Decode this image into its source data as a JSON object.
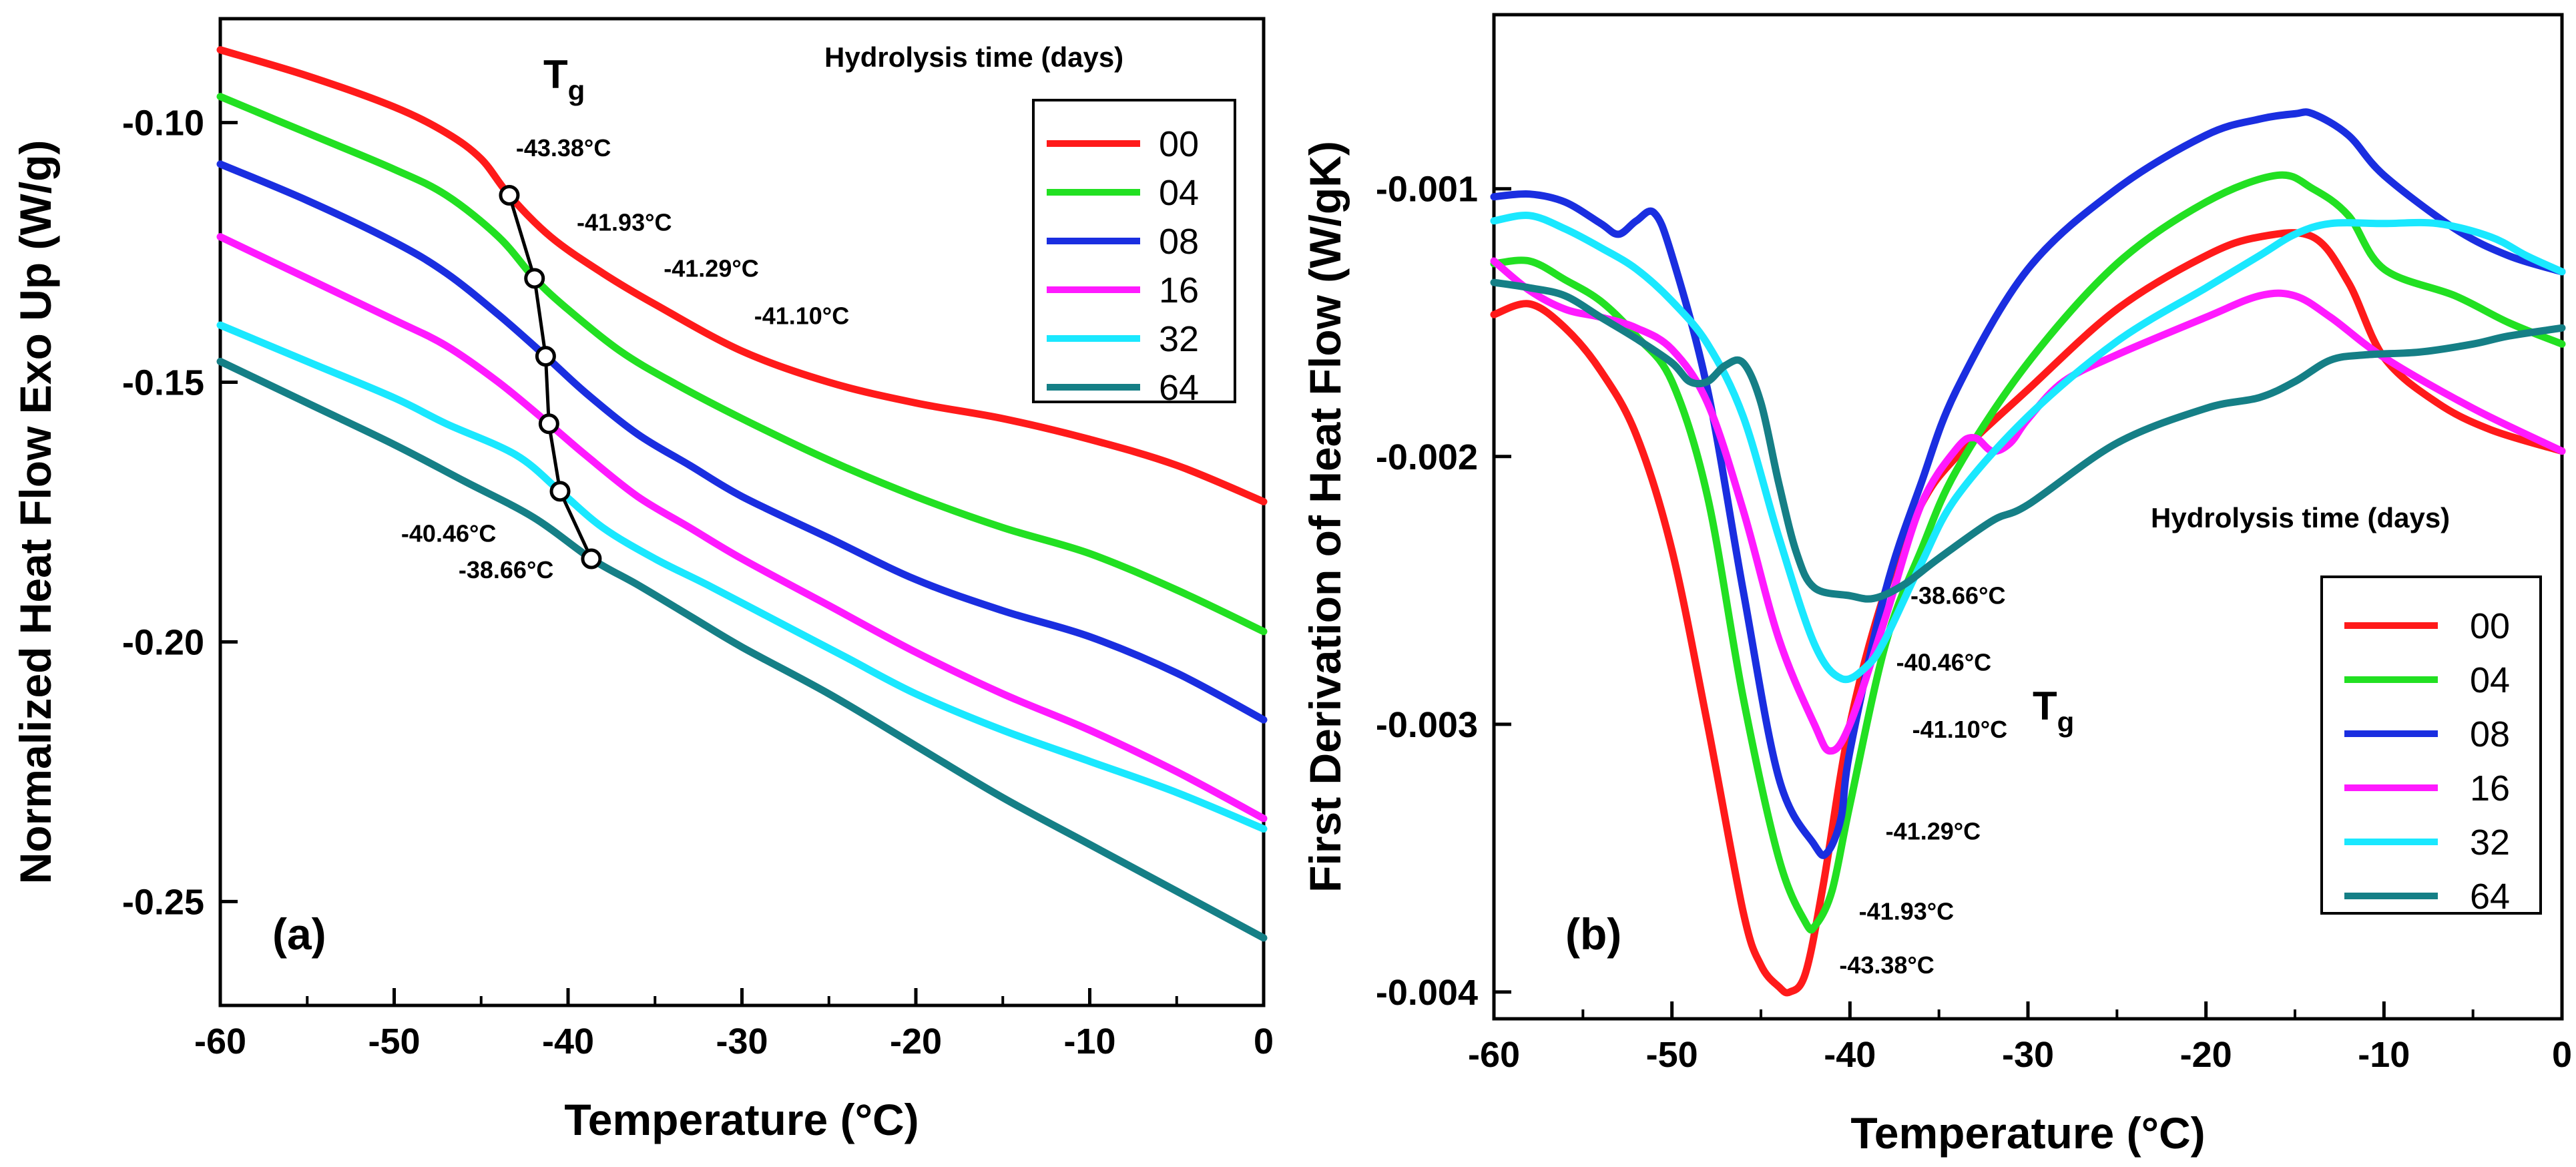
{
  "colors": {
    "00": "#ff1a1a",
    "04": "#22e022",
    "08": "#1a2ee0",
    "16": "#ff1aff",
    "32": "#1ae8ff",
    "64": "#157f86"
  },
  "chart_data": [
    {
      "type": "line",
      "panel_label": "(a)",
      "xlabel": "Temperature (°C)",
      "ylabel": "Normalized Heat Flow Exo Up (W/g)",
      "xlim": [
        -60,
        0
      ],
      "ylim": [
        -0.27,
        -0.08
      ],
      "xticks": [
        -60,
        -50,
        -40,
        -30,
        -20,
        -10,
        0
      ],
      "xtick_labels": [
        "-60",
        "-50",
        "-40",
        "-30",
        "-20",
        "-10",
        "0"
      ],
      "yticks": [
        -0.1,
        -0.15,
        -0.2,
        -0.25
      ],
      "ytick_labels": [
        "-0.10",
        "-0.15",
        "-0.20",
        "-0.25"
      ],
      "legend_title": "Hydrolysis time (days)",
      "series": [
        {
          "name": "00",
          "x": [
            -60,
            -55,
            -50,
            -47,
            -45,
            -43.38,
            -41,
            -38,
            -35,
            -30,
            -25,
            -20,
            -15,
            -10,
            -5,
            0
          ],
          "y": [
            -0.086,
            -0.091,
            -0.097,
            -0.102,
            -0.107,
            -0.114,
            -0.122,
            -0.129,
            -0.135,
            -0.144,
            -0.15,
            -0.154,
            -0.157,
            -0.161,
            -0.166,
            -0.173
          ]
        },
        {
          "name": "04",
          "x": [
            -60,
            -55,
            -50,
            -47,
            -44,
            -41.93,
            -40,
            -37,
            -34,
            -30,
            -25,
            -20,
            -15,
            -10,
            -5,
            0
          ],
          "y": [
            -0.095,
            -0.102,
            -0.109,
            -0.114,
            -0.122,
            -0.13,
            -0.136,
            -0.144,
            -0.15,
            -0.157,
            -0.165,
            -0.172,
            -0.178,
            -0.183,
            -0.19,
            -0.198
          ]
        },
        {
          "name": "08",
          "x": [
            -60,
            -55,
            -50,
            -47,
            -44,
            -41.29,
            -39,
            -36,
            -33,
            -30,
            -25,
            -20,
            -15,
            -10,
            -5,
            0
          ],
          "y": [
            -0.108,
            -0.115,
            -0.123,
            -0.129,
            -0.137,
            -0.145,
            -0.152,
            -0.16,
            -0.166,
            -0.172,
            -0.18,
            -0.188,
            -0.194,
            -0.199,
            -0.206,
            -0.215
          ]
        },
        {
          "name": "16",
          "x": [
            -60,
            -55,
            -50,
            -47,
            -44,
            -41.1,
            -39,
            -36,
            -33,
            -30,
            -25,
            -20,
            -15,
            -10,
            -5,
            0
          ],
          "y": [
            -0.122,
            -0.13,
            -0.138,
            -0.143,
            -0.15,
            -0.158,
            -0.164,
            -0.172,
            -0.178,
            -0.184,
            -0.193,
            -0.202,
            -0.21,
            -0.217,
            -0.225,
            -0.234
          ]
        },
        {
          "name": "32",
          "x": [
            -60,
            -55,
            -50,
            -47,
            -43,
            -40.46,
            -38,
            -35,
            -32,
            -28,
            -24,
            -20,
            -15,
            -10,
            -5,
            0
          ],
          "y": [
            -0.139,
            -0.146,
            -0.153,
            -0.158,
            -0.164,
            -0.171,
            -0.178,
            -0.184,
            -0.189,
            -0.196,
            -0.203,
            -0.21,
            -0.217,
            -0.223,
            -0.229,
            -0.236
          ]
        },
        {
          "name": "64",
          "x": [
            -60,
            -55,
            -50,
            -46,
            -42,
            -38.66,
            -36,
            -33,
            -30,
            -25,
            -20,
            -15,
            -10,
            -5,
            0
          ],
          "y": [
            -0.146,
            -0.154,
            -0.162,
            -0.169,
            -0.176,
            -0.184,
            -0.189,
            -0.195,
            -0.201,
            -0.21,
            -0.22,
            -0.23,
            -0.239,
            -0.248,
            -0.257
          ]
        }
      ],
      "tg_title": {
        "main": "T",
        "sub": "g"
      },
      "tg_points": [
        {
          "x": -43.38,
          "y": -0.114
        },
        {
          "x": -41.93,
          "y": -0.13
        },
        {
          "x": -41.29,
          "y": -0.145
        },
        {
          "x": -41.1,
          "y": -0.158
        },
        {
          "x": -40.46,
          "y": -0.171
        },
        {
          "x": -38.66,
          "y": -0.184
        }
      ],
      "annotations": [
        {
          "text": "-43.38°C",
          "x": -43.0,
          "y": -0.1065
        },
        {
          "text": "-41.93°C",
          "x": -39.5,
          "y": -0.1208
        },
        {
          "text": "-41.29°C",
          "x": -34.5,
          "y": -0.1297
        },
        {
          "text": "-41.10°C",
          "x": -29.3,
          "y": -0.1388
        },
        {
          "text": "-40.46°C",
          "x": -49.6,
          "y": -0.1807
        },
        {
          "text": "-38.66°C",
          "x": -46.3,
          "y": -0.1877
        }
      ]
    },
    {
      "type": "line",
      "panel_label": "(b)",
      "xlabel": "Temperature (°C)",
      "ylabel": "First Derivation of Heat Flow (W/gK)",
      "xlim": [
        -60,
        0
      ],
      "ylim": [
        -0.0041,
        -0.00035
      ],
      "xticks": [
        -60,
        -50,
        -40,
        -30,
        -20,
        -10,
        0
      ],
      "xtick_labels": [
        "-60",
        "-50",
        "-40",
        "-30",
        "-20",
        "-10",
        "0"
      ],
      "yticks": [
        -0.001,
        -0.002,
        -0.003,
        -0.004
      ],
      "ytick_labels": [
        "-0.001",
        "-0.002",
        "-0.003",
        "-0.004"
      ],
      "legend_title": "Hydrolysis time (days)",
      "series": [
        {
          "name": "00",
          "x": [
            -60,
            -58,
            -56,
            -54,
            -52,
            -50,
            -48,
            -46,
            -45,
            -44,
            -43.38,
            -42.5,
            -41.5,
            -40,
            -38,
            -36,
            -34,
            -30,
            -25,
            -20,
            -17,
            -14,
            -12,
            -10,
            -7,
            -4,
            0
          ],
          "y": [
            -0.00147,
            -0.00143,
            -0.00152,
            -0.00168,
            -0.00192,
            -0.00235,
            -0.003,
            -0.0037,
            -0.0039,
            -0.00398,
            -0.004,
            -0.00393,
            -0.0036,
            -0.003,
            -0.0025,
            -0.00218,
            -0.002,
            -0.00175,
            -0.00145,
            -0.00125,
            -0.00118,
            -0.00118,
            -0.00135,
            -0.00163,
            -0.0018,
            -0.0019,
            -0.00198
          ]
        },
        {
          "name": "04",
          "x": [
            -60,
            -58,
            -56,
            -54,
            -52,
            -50,
            -48,
            -46,
            -44,
            -42.5,
            -41.93,
            -41,
            -40,
            -38,
            -36,
            -34,
            -30,
            -25,
            -20,
            -16,
            -14,
            -12,
            -10,
            -6,
            -3,
            0
          ],
          "y": [
            -0.00128,
            -0.00127,
            -0.00134,
            -0.00142,
            -0.00155,
            -0.00172,
            -0.00215,
            -0.0029,
            -0.0035,
            -0.00374,
            -0.00375,
            -0.00362,
            -0.0033,
            -0.0027,
            -0.00235,
            -0.00205,
            -0.00165,
            -0.00128,
            -0.00105,
            -0.00095,
            -0.001,
            -0.0011,
            -0.0013,
            -0.0014,
            -0.0015,
            -0.00158
          ]
        },
        {
          "name": "08",
          "x": [
            -60,
            -58,
            -56,
            -54,
            -53,
            -52,
            -51,
            -50,
            -48,
            -46,
            -44,
            -42,
            -41.29,
            -40.5,
            -40,
            -38,
            -36,
            -34,
            -30,
            -25,
            -20,
            -17,
            -15,
            -14,
            -12,
            -10,
            -6,
            -3,
            0
          ],
          "y": [
            -0.00103,
            -0.00102,
            -0.00105,
            -0.00113,
            -0.00117,
            -0.00112,
            -0.00109,
            -0.00125,
            -0.00175,
            -0.0025,
            -0.0032,
            -0.00345,
            -0.00348,
            -0.00335,
            -0.0031,
            -0.0025,
            -0.0021,
            -0.00175,
            -0.0013,
            -0.001,
            -0.0008,
            -0.00074,
            -0.00072,
            -0.00072,
            -0.0008,
            -0.00095,
            -0.00115,
            -0.00125,
            -0.00131
          ]
        },
        {
          "name": "16",
          "x": [
            -60,
            -58,
            -56,
            -54,
            -52,
            -50,
            -48,
            -46,
            -44,
            -42,
            -41.1,
            -40,
            -38,
            -36,
            -34,
            -33,
            -32,
            -31,
            -30,
            -28,
            -25,
            -20,
            -17,
            -15,
            -13,
            -10,
            -5,
            0
          ],
          "y": [
            -0.00127,
            -0.00138,
            -0.00145,
            -0.00148,
            -0.00152,
            -0.0016,
            -0.0018,
            -0.0022,
            -0.00268,
            -0.003,
            -0.0031,
            -0.003,
            -0.0026,
            -0.00218,
            -0.00197,
            -0.00193,
            -0.00198,
            -0.00195,
            -0.00186,
            -0.00172,
            -0.00162,
            -0.00148,
            -0.0014,
            -0.0014,
            -0.00148,
            -0.00163,
            -0.00182,
            -0.00198
          ]
        },
        {
          "name": "32",
          "x": [
            -60,
            -58,
            -56,
            -54,
            -52,
            -50,
            -48,
            -46,
            -44,
            -42,
            -40.46,
            -39,
            -38,
            -36,
            -34,
            -30,
            -25,
            -20,
            -17,
            -15,
            -13,
            -10,
            -7,
            -4,
            -2,
            0
          ],
          "y": [
            -0.00112,
            -0.0011,
            -0.00115,
            -0.00122,
            -0.0013,
            -0.00142,
            -0.00158,
            -0.00185,
            -0.0023,
            -0.0027,
            -0.00283,
            -0.00278,
            -0.00268,
            -0.0024,
            -0.00215,
            -0.00185,
            -0.00157,
            -0.00137,
            -0.00125,
            -0.00117,
            -0.00113,
            -0.00113,
            -0.00113,
            -0.00118,
            -0.00125,
            -0.00131
          ]
        },
        {
          "name": "64",
          "x": [
            -60,
            -58,
            -56,
            -54,
            -52,
            -50,
            -49,
            -48,
            -47,
            -46,
            -45,
            -44,
            -43,
            -42,
            -40,
            -38.66,
            -37,
            -35,
            -32,
            -30,
            -25,
            -20,
            -17,
            -15,
            -13,
            -11,
            -8,
            -5,
            -3,
            0
          ],
          "y": [
            -0.00135,
            -0.00137,
            -0.0014,
            -0.00148,
            -0.00156,
            -0.00165,
            -0.00172,
            -0.00172,
            -0.00166,
            -0.00165,
            -0.0018,
            -0.0021,
            -0.00236,
            -0.00249,
            -0.00252,
            -0.00253,
            -0.00248,
            -0.00238,
            -0.00224,
            -0.00218,
            -0.00195,
            -0.00182,
            -0.00178,
            -0.00172,
            -0.00164,
            -0.00162,
            -0.00161,
            -0.00158,
            -0.00155,
            -0.00152
          ]
        }
      ],
      "tg_title": {
        "main": "T",
        "sub": "g"
      },
      "annotations": [
        {
          "text": "-38.66°C",
          "x": -36.6,
          "y": -0.00255
        },
        {
          "text": "-40.46°C",
          "x": -37.4,
          "y": -0.0028
        },
        {
          "text": "-41.10°C",
          "x": -36.5,
          "y": -0.00305
        },
        {
          "text": "-41.29°C",
          "x": -38.0,
          "y": -0.00343
        },
        {
          "text": "-41.93°C",
          "x": -39.5,
          "y": -0.00373
        },
        {
          "text": "-43.38°C",
          "x": -40.6,
          "y": -0.00393
        }
      ]
    }
  ]
}
